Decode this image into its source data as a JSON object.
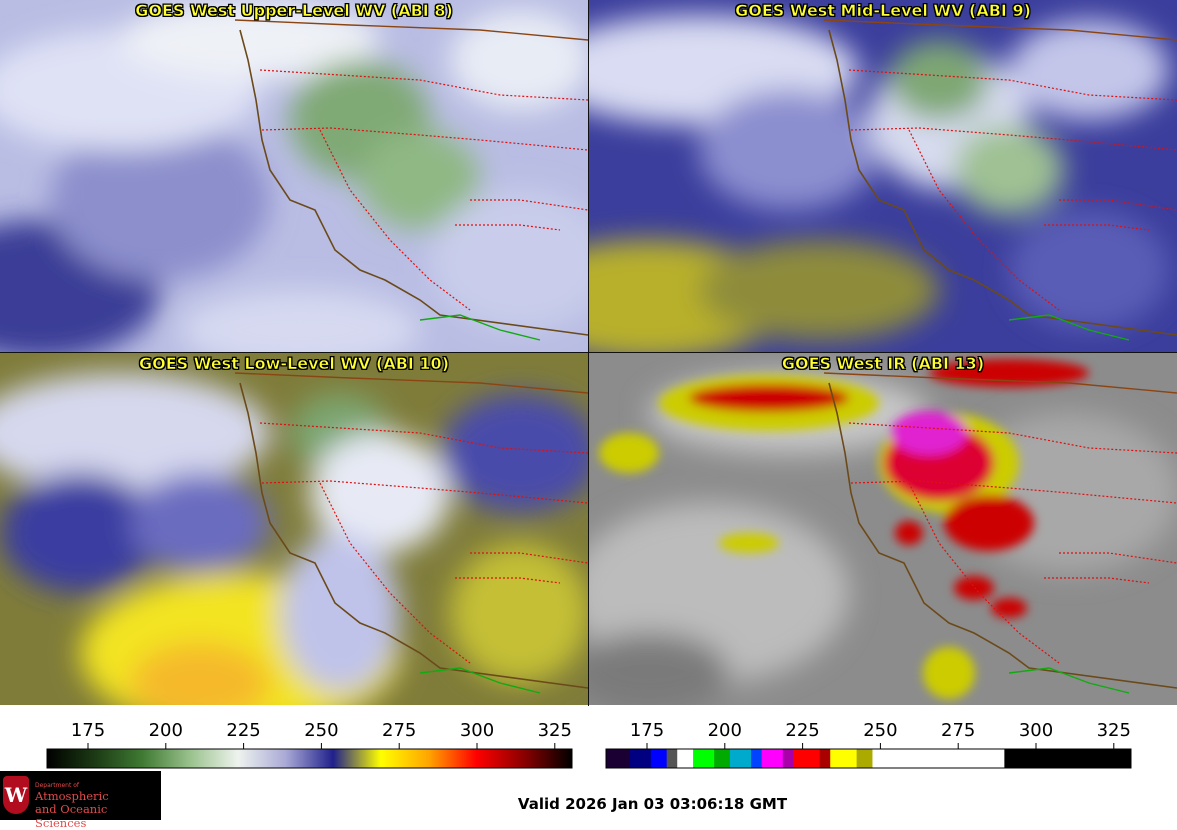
{
  "panels": [
    {
      "title": "GOES West Upper-Level WV (ABI 8)"
    },
    {
      "title": "GOES West Mid-Level WV (ABI 9)"
    },
    {
      "title": "GOES West Low-Level WV (ABI 10)"
    },
    {
      "title": "GOES West IR (ABI 13)"
    }
  ],
  "colorbars": {
    "wv": {
      "ticks": [
        "175",
        "200",
        "225",
        "250",
        "275",
        "300",
        "325"
      ],
      "stops": [
        "#000000",
        "#1c3a14",
        "#3f7a33",
        "#9ac28d",
        "#eef3ee",
        "#a9a9d6",
        "#20208c",
        "#ffff00",
        "#ffa500",
        "#ff0000",
        "#8a0000",
        "#000000"
      ]
    },
    "ir": {
      "ticks": [
        "175",
        "200",
        "225",
        "250",
        "275",
        "300",
        "325"
      ],
      "segments": [
        "#1a0033",
        "#000080",
        "#0000ff",
        "#555555",
        "#ffffff",
        "#00ff00",
        "#00aa00",
        "#00aacc",
        "#0044ff",
        "#ff00ff",
        "#aa00aa",
        "#ff0000",
        "#aa0000",
        "#ffff00",
        "#aaaa00",
        "#ffffff",
        "#000000"
      ]
    }
  },
  "logo": {
    "crest": "W",
    "department": "Department of",
    "line1": "Atmospheric",
    "line2": "and Oceanic Sciences"
  },
  "valid_time": "Valid 2026 Jan 03 03:06:18 GMT"
}
